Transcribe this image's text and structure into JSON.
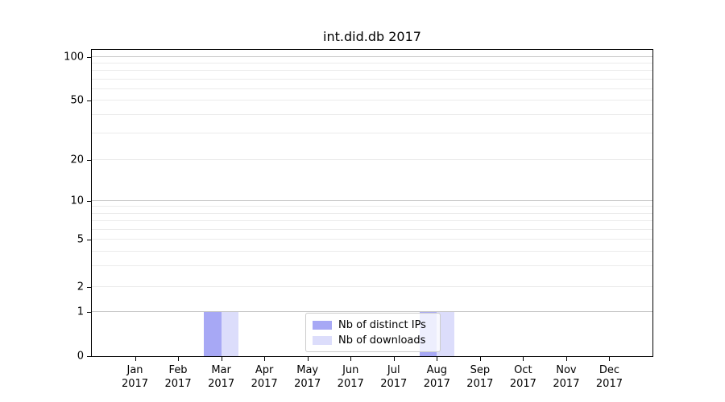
{
  "chart_data": {
    "type": "bar",
    "title": "int.did.db 2017",
    "categories": [
      "Jan",
      "Feb",
      "Mar",
      "Apr",
      "May",
      "Jun",
      "Jul",
      "Aug",
      "Sep",
      "Oct",
      "Nov",
      "Dec"
    ],
    "category_year": "2017",
    "series": [
      {
        "name": "Nb of distinct IPs",
        "color": "#a7a8f5",
        "values": [
          0,
          0,
          1,
          0,
          0,
          0,
          0,
          1,
          0,
          0,
          0,
          0
        ]
      },
      {
        "name": "Nb of downloads",
        "color": "#dcddfb",
        "values": [
          0,
          0,
          1,
          0,
          0,
          0,
          0,
          1,
          0,
          0,
          0,
          0
        ]
      }
    ],
    "xlabel": "",
    "ylabel": "",
    "y_axis": {
      "ticks": [
        0,
        1,
        2,
        5,
        10,
        20,
        50,
        100
      ],
      "minor_gridlines": [
        3,
        4,
        6,
        7,
        8,
        9,
        30,
        40,
        60,
        70,
        80,
        90
      ],
      "scale": "quasi-log",
      "ylim": [
        0,
        110
      ]
    },
    "legend": {
      "position": "lower center"
    },
    "grid": true,
    "colors": {
      "major_grid": "#c8c8c8",
      "minor_grid": "#ebebeb",
      "spine": "#000000",
      "background": "#ffffff"
    }
  }
}
